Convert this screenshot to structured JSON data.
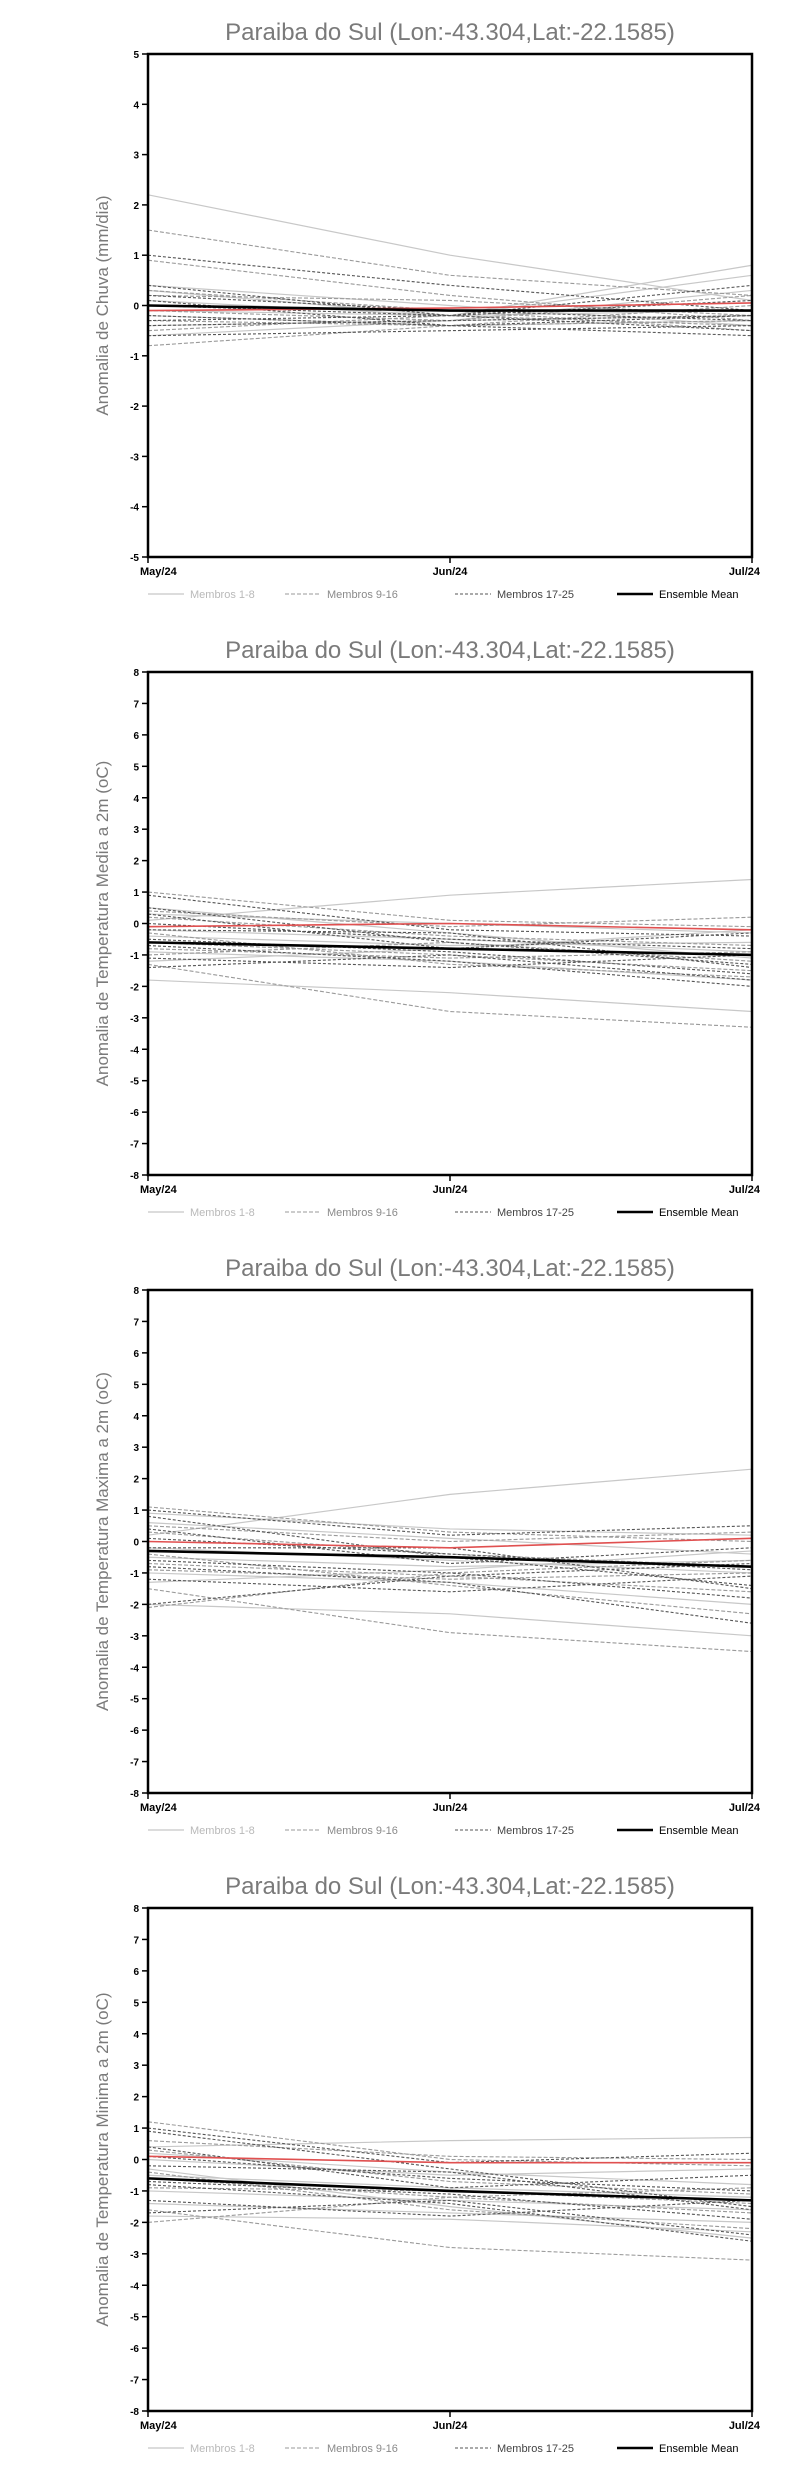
{
  "chart_data": [
    {
      "type": "line",
      "title": "Paraiba do Sul (Lon:-43.304,Lat:-22.1585)",
      "ylabel": "Anomalia de Chuva (mm/dia)",
      "xlabel": "",
      "x": [
        "May/24",
        "Jun/24",
        "Jul/24"
      ],
      "ylim": [
        -5,
        5
      ],
      "yticks": [
        -5,
        -4,
        -3,
        -2,
        -1,
        0,
        1,
        2,
        3,
        4,
        5
      ],
      "legend": [
        "Membros 1-8",
        "Membros 9-16",
        "Membros 17-25",
        "Ensemble Mean"
      ],
      "ensemble_mean": [
        0.0,
        -0.1,
        -0.1
      ],
      "reference": [
        -0.1,
        -0.05,
        0.05
      ],
      "members": [
        {
          "group": 1,
          "values": [
            2.2,
            1.0,
            0.1
          ]
        },
        {
          "group": 1,
          "values": [
            0.3,
            -0.2,
            0.6
          ]
        },
        {
          "group": 1,
          "values": [
            -0.4,
            -0.3,
            -0.2
          ]
        },
        {
          "group": 1,
          "values": [
            0.1,
            -0.2,
            0.8
          ]
        },
        {
          "group": 1,
          "values": [
            -0.2,
            -0.4,
            -0.3
          ]
        },
        {
          "group": 1,
          "values": [
            0.4,
            0.0,
            -0.4
          ]
        },
        {
          "group": 1,
          "values": [
            -0.6,
            -0.3,
            0.3
          ]
        },
        {
          "group": 1,
          "values": [
            -0.1,
            -0.2,
            -0.1
          ]
        },
        {
          "group": 2,
          "values": [
            1.5,
            0.6,
            0.2
          ]
        },
        {
          "group": 2,
          "values": [
            0.9,
            0.2,
            -0.3
          ]
        },
        {
          "group": 2,
          "values": [
            -0.3,
            -0.4,
            0.0
          ]
        },
        {
          "group": 2,
          "values": [
            0.2,
            0.1,
            -0.2
          ]
        },
        {
          "group": 2,
          "values": [
            -0.5,
            -0.2,
            -0.4
          ]
        },
        {
          "group": 2,
          "values": [
            -0.1,
            -0.3,
            0.2
          ]
        },
        {
          "group": 2,
          "values": [
            0.3,
            -0.1,
            -0.5
          ]
        },
        {
          "group": 2,
          "values": [
            -0.8,
            -0.4,
            -0.3
          ]
        },
        {
          "group": 3,
          "values": [
            0.4,
            -0.2,
            -0.5
          ]
        },
        {
          "group": 3,
          "values": [
            -0.2,
            -0.4,
            -0.6
          ]
        },
        {
          "group": 3,
          "values": [
            0.0,
            -0.2,
            0.1
          ]
        },
        {
          "group": 3,
          "values": [
            -0.4,
            -0.3,
            -0.2
          ]
        },
        {
          "group": 3,
          "values": [
            1.0,
            0.4,
            -0.1
          ]
        },
        {
          "group": 3,
          "values": [
            -0.6,
            -0.5,
            -0.4
          ]
        },
        {
          "group": 3,
          "values": [
            0.2,
            -0.1,
            -0.3
          ]
        },
        {
          "group": 3,
          "values": [
            -0.3,
            -0.2,
            0.4
          ]
        },
        {
          "group": 3,
          "values": [
            0.1,
            -0.4,
            -0.2
          ]
        }
      ]
    },
    {
      "type": "line",
      "title": "Paraiba do Sul (Lon:-43.304,Lat:-22.1585)",
      "ylabel": "Anomalia de Temperatura Media a 2m (oC)",
      "xlabel": "",
      "x": [
        "May/24",
        "Jun/24",
        "Jul/24"
      ],
      "ylim": [
        -8,
        8
      ],
      "yticks": [
        -8,
        -7,
        -6,
        -5,
        -4,
        -3,
        -2,
        -1,
        0,
        1,
        2,
        3,
        4,
        5,
        6,
        7,
        8
      ],
      "legend": [
        "Membros 1-8",
        "Membros 9-16",
        "Membros 17-25",
        "Ensemble Mean"
      ],
      "ensemble_mean": [
        -0.6,
        -0.8,
        -1.0
      ],
      "reference": [
        -0.1,
        0.0,
        -0.2
      ],
      "members": [
        {
          "group": 1,
          "values": [
            0.1,
            0.9,
            1.4
          ]
        },
        {
          "group": 1,
          "values": [
            -0.4,
            -0.7,
            -0.6
          ]
        },
        {
          "group": 1,
          "values": [
            -1.8,
            -2.2,
            -2.8
          ]
        },
        {
          "group": 1,
          "values": [
            0.3,
            0.0,
            -0.3
          ]
        },
        {
          "group": 1,
          "values": [
            -0.9,
            -1.2,
            -1.8
          ]
        },
        {
          "group": 1,
          "values": [
            -0.2,
            -0.5,
            -0.9
          ]
        },
        {
          "group": 1,
          "values": [
            -1.2,
            -0.8,
            -0.2
          ]
        },
        {
          "group": 1,
          "values": [
            0.5,
            -0.3,
            -1.1
          ]
        },
        {
          "group": 2,
          "values": [
            1.0,
            0.1,
            -0.1
          ]
        },
        {
          "group": 2,
          "values": [
            -0.6,
            -1.0,
            -1.5
          ]
        },
        {
          "group": 2,
          "values": [
            -1.3,
            -2.8,
            -3.3
          ]
        },
        {
          "group": 2,
          "values": [
            0.2,
            -0.4,
            -0.7
          ]
        },
        {
          "group": 2,
          "values": [
            -0.8,
            -1.1,
            -0.9
          ]
        },
        {
          "group": 2,
          "values": [
            0.4,
            -0.1,
            0.2
          ]
        },
        {
          "group": 2,
          "values": [
            -0.3,
            -1.3,
            -1.7
          ]
        },
        {
          "group": 2,
          "values": [
            -1.0,
            -0.6,
            -1.2
          ]
        },
        {
          "group": 3,
          "values": [
            0.5,
            -0.6,
            -1.3
          ]
        },
        {
          "group": 3,
          "values": [
            -0.5,
            -0.9,
            -1.6
          ]
        },
        {
          "group": 3,
          "values": [
            0.9,
            -0.2,
            -0.4
          ]
        },
        {
          "group": 3,
          "values": [
            -1.1,
            -1.4,
            -1.0
          ]
        },
        {
          "group": 3,
          "values": [
            0.0,
            -0.5,
            -0.8
          ]
        },
        {
          "group": 3,
          "values": [
            -0.7,
            -1.2,
            -2.0
          ]
        },
        {
          "group": 3,
          "values": [
            0.3,
            -0.8,
            -0.3
          ]
        },
        {
          "group": 3,
          "values": [
            -0.2,
            -0.3,
            -1.4
          ]
        },
        {
          "group": 3,
          "values": [
            -1.4,
            -1.0,
            -1.8
          ]
        }
      ]
    },
    {
      "type": "line",
      "title": "Paraiba do Sul (Lon:-43.304,Lat:-22.1585)",
      "ylabel": "Anomalia de Temperatura Maxima a 2m (oC)",
      "xlabel": "",
      "x": [
        "May/24",
        "Jun/24",
        "Jul/24"
      ],
      "ylim": [
        -8,
        8
      ],
      "yticks": [
        -8,
        -7,
        -6,
        -5,
        -4,
        -3,
        -2,
        -1,
        0,
        1,
        2,
        3,
        4,
        5,
        6,
        7,
        8
      ],
      "legend": [
        "Membros 1-8",
        "Membros 9-16",
        "Membros 17-25",
        "Ensemble Mean"
      ],
      "ensemble_mean": [
        -0.3,
        -0.5,
        -0.8
      ],
      "reference": [
        0.0,
        -0.2,
        0.1
      ],
      "members": [
        {
          "group": 1,
          "values": [
            0.2,
            1.5,
            2.3
          ]
        },
        {
          "group": 1,
          "values": [
            -0.5,
            -0.8,
            -0.6
          ]
        },
        {
          "group": 1,
          "values": [
            -2.0,
            -2.3,
            -3.0
          ]
        },
        {
          "group": 1,
          "values": [
            0.6,
            0.1,
            -0.4
          ]
        },
        {
          "group": 1,
          "values": [
            -1.0,
            -1.3,
            -2.0
          ]
        },
        {
          "group": 1,
          "values": [
            -0.2,
            -0.6,
            -1.0
          ]
        },
        {
          "group": 1,
          "values": [
            -1.3,
            -0.9,
            -0.3
          ]
        },
        {
          "group": 1,
          "values": [
            0.9,
            0.4,
            0.2
          ]
        },
        {
          "group": 2,
          "values": [
            1.1,
            0.3,
            0.0
          ]
        },
        {
          "group": 2,
          "values": [
            -0.7,
            -1.1,
            -1.6
          ]
        },
        {
          "group": 2,
          "values": [
            -1.5,
            -2.9,
            -3.5
          ]
        },
        {
          "group": 2,
          "values": [
            0.3,
            -0.4,
            -0.8
          ]
        },
        {
          "group": 2,
          "values": [
            -0.9,
            -1.2,
            -1.0
          ]
        },
        {
          "group": 2,
          "values": [
            0.5,
            0.0,
            0.3
          ]
        },
        {
          "group": 2,
          "values": [
            -0.4,
            -1.4,
            -2.3
          ]
        },
        {
          "group": 2,
          "values": [
            -2.1,
            -1.0,
            -0.6
          ]
        },
        {
          "group": 3,
          "values": [
            0.8,
            -0.5,
            -1.4
          ]
        },
        {
          "group": 3,
          "values": [
            -0.6,
            -1.0,
            -1.8
          ]
        },
        {
          "group": 3,
          "values": [
            1.0,
            0.2,
            0.5
          ]
        },
        {
          "group": 3,
          "values": [
            -1.2,
            -1.6,
            -1.1
          ]
        },
        {
          "group": 3,
          "values": [
            0.1,
            -0.4,
            -0.9
          ]
        },
        {
          "group": 3,
          "values": [
            -0.8,
            -1.3,
            -2.6
          ]
        },
        {
          "group": 3,
          "values": [
            0.4,
            -0.7,
            -0.2
          ]
        },
        {
          "group": 3,
          "values": [
            -0.2,
            -0.2,
            -1.5
          ]
        },
        {
          "group": 3,
          "values": [
            -2.0,
            -1.1,
            -0.7
          ]
        }
      ]
    },
    {
      "type": "line",
      "title": "Paraiba do Sul (Lon:-43.304,Lat:-22.1585)",
      "ylabel": "Anomalia de Temperatura Minima a 2m (oC)",
      "xlabel": "",
      "x": [
        "May/24",
        "Jun/24",
        "Jul/24"
      ],
      "ylim": [
        -8,
        8
      ],
      "yticks": [
        -8,
        -7,
        -6,
        -5,
        -4,
        -3,
        -2,
        -1,
        0,
        1,
        2,
        3,
        4,
        5,
        6,
        7,
        8
      ],
      "legend": [
        "Membros 1-8",
        "Membros 9-16",
        "Membros 17-25",
        "Ensemble Mean"
      ],
      "ensemble_mean": [
        -0.6,
        -1.0,
        -1.3
      ],
      "reference": [
        0.1,
        -0.1,
        -0.1
      ],
      "members": [
        {
          "group": 1,
          "values": [
            0.4,
            0.6,
            0.7
          ]
        },
        {
          "group": 1,
          "values": [
            -1.8,
            -1.9,
            -2.3
          ]
        },
        {
          "group": 1,
          "values": [
            -0.3,
            -1.5,
            -2.5
          ]
        },
        {
          "group": 1,
          "values": [
            0.2,
            -0.4,
            -0.8
          ]
        },
        {
          "group": 1,
          "values": [
            -1.0,
            -1.3,
            -1.6
          ]
        },
        {
          "group": 1,
          "values": [
            -0.5,
            -0.9,
            -1.2
          ]
        },
        {
          "group": 1,
          "values": [
            -1.4,
            -1.7,
            -2.0
          ]
        },
        {
          "group": 1,
          "values": [
            0.0,
            -0.5,
            -0.3
          ]
        },
        {
          "group": 2,
          "values": [
            1.2,
            0.0,
            -0.2
          ]
        },
        {
          "group": 2,
          "values": [
            -0.6,
            -1.2,
            -1.7
          ]
        },
        {
          "group": 2,
          "values": [
            -1.6,
            -2.8,
            -3.2
          ]
        },
        {
          "group": 2,
          "values": [
            0.3,
            -0.7,
            -1.1
          ]
        },
        {
          "group": 2,
          "values": [
            -0.9,
            -1.0,
            -1.4
          ]
        },
        {
          "group": 2,
          "values": [
            0.6,
            0.1,
            0.0
          ]
        },
        {
          "group": 2,
          "values": [
            -0.4,
            -1.6,
            -2.2
          ]
        },
        {
          "group": 2,
          "values": [
            -2.0,
            -1.2,
            -0.9
          ]
        },
        {
          "group": 3,
          "values": [
            0.9,
            -0.3,
            -1.5
          ]
        },
        {
          "group": 3,
          "values": [
            -0.7,
            -1.1,
            -1.9
          ]
        },
        {
          "group": 3,
          "values": [
            1.0,
            -0.1,
            0.2
          ]
        },
        {
          "group": 3,
          "values": [
            -1.3,
            -1.8,
            -1.3
          ]
        },
        {
          "group": 3,
          "values": [
            0.1,
            -0.6,
            -1.0
          ]
        },
        {
          "group": 3,
          "values": [
            -0.8,
            -1.4,
            -2.6
          ]
        },
        {
          "group": 3,
          "values": [
            0.4,
            -0.9,
            -0.5
          ]
        },
        {
          "group": 3,
          "values": [
            -0.2,
            -0.4,
            -1.6
          ]
        },
        {
          "group": 3,
          "values": [
            -1.7,
            -1.3,
            -2.4
          ]
        }
      ]
    }
  ],
  "colors": {
    "group1": "#c8c8c8",
    "group2": "#9a9a9a",
    "group3": "#555555",
    "mean": "#000000",
    "reference": "#e05050",
    "axis": "#000000",
    "title": "#7a7a7a",
    "ylabel": "#7a7a7a"
  }
}
